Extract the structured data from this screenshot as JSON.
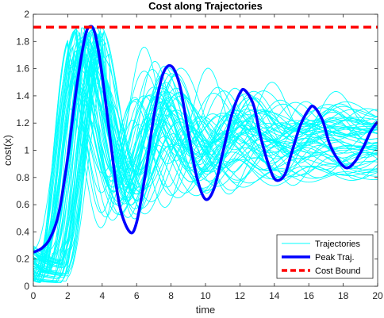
{
  "chart_data": {
    "type": "line",
    "title": "Cost along Trajectories",
    "xlabel": "time",
    "ylabel": "cost(x)",
    "xlim": [
      0,
      20
    ],
    "ylim": [
      0,
      2
    ],
    "x_ticks": [
      "0",
      "2",
      "4",
      "6",
      "8",
      "10",
      "12",
      "14",
      "16",
      "18",
      "20"
    ],
    "y_ticks": [
      "0",
      "0.2",
      "0.4",
      "0.6",
      "0.8",
      "1",
      "1.2",
      "1.4",
      "1.6",
      "1.8",
      "2"
    ],
    "grid": false,
    "legend": {
      "position": "bottom-right",
      "entries": [
        "Trajectories",
        "Peak Traj.",
        "Cost Bound"
      ]
    },
    "series": [
      {
        "name": "Trajectories",
        "color": "#00ffff",
        "style": "solid-thin",
        "description_count": 60,
        "family": "damped oscillations starting between 0.05 and 0.3, settling between 0.8 and 1.3"
      },
      {
        "name": "Peak Traj.",
        "color": "#0000ff",
        "style": "solid-thick",
        "x": [
          0,
          0.5,
          1,
          1.5,
          2,
          2.5,
          3,
          3.3,
          3.6,
          4,
          4.5,
          5,
          5.6,
          6,
          6.5,
          7,
          7.5,
          8,
          8.5,
          9,
          9.5,
          10,
          10.5,
          11,
          11.5,
          12,
          12.3,
          12.8,
          13.2,
          13.7,
          14.1,
          14.6,
          15,
          15.5,
          16,
          16.3,
          16.8,
          17.2,
          17.7,
          18.2,
          18.7,
          19.2,
          19.6,
          20
        ],
        "y": [
          0.25,
          0.28,
          0.36,
          0.55,
          0.95,
          1.45,
          1.83,
          1.91,
          1.85,
          1.55,
          1.05,
          0.6,
          0.4,
          0.47,
          0.82,
          1.25,
          1.55,
          1.62,
          1.48,
          1.13,
          0.8,
          0.64,
          0.72,
          0.98,
          1.25,
          1.42,
          1.44,
          1.33,
          1.1,
          0.88,
          0.78,
          0.82,
          0.98,
          1.18,
          1.3,
          1.32,
          1.22,
          1.05,
          0.93,
          0.87,
          0.92,
          1.03,
          1.14,
          1.21
        ]
      },
      {
        "name": "Cost Bound",
        "color": "#ff0000",
        "style": "dashed-thick",
        "x": [
          0,
          20
        ],
        "y": [
          1.905,
          1.905
        ]
      }
    ]
  }
}
